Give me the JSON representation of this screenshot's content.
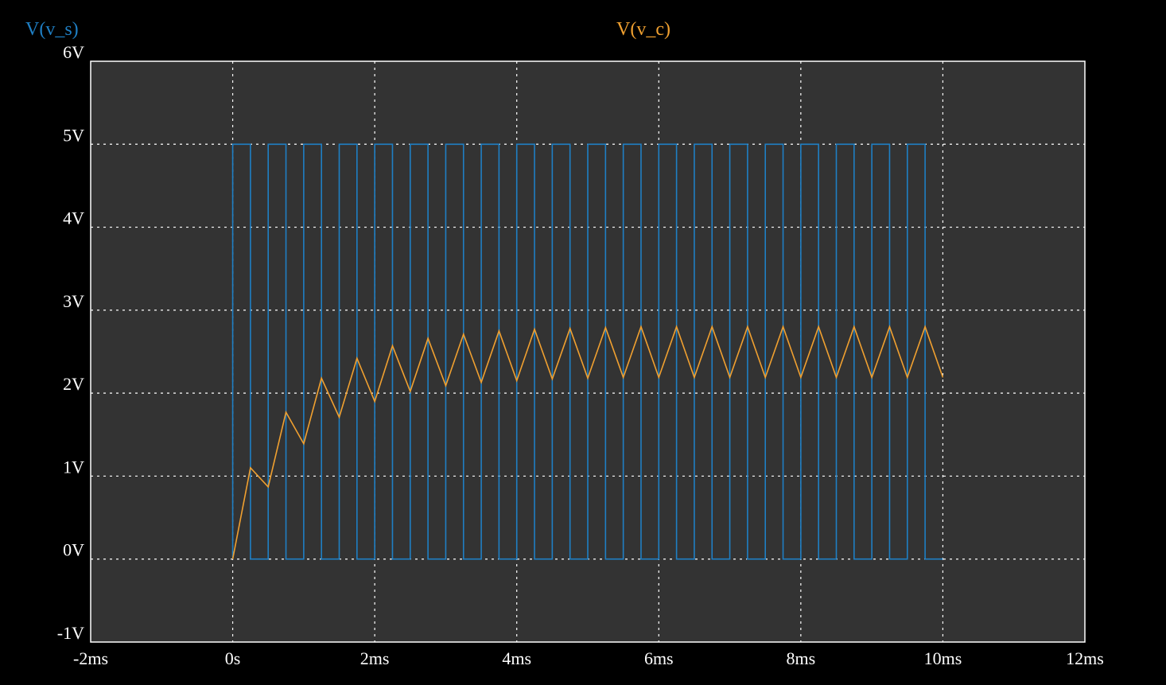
{
  "chart_data": {
    "type": "line",
    "background": "#000000",
    "plot_background": "#333333",
    "grid": true,
    "grid_color": "#ffffff",
    "frame_color": "#ffffff",
    "tick_label_color": "#ffffff",
    "xlim": [
      -2,
      12
    ],
    "ylim": [
      -1,
      6
    ],
    "x_unit": "ms",
    "y_unit": "V",
    "x_ticks": [
      -2,
      0,
      2,
      4,
      6,
      8,
      10,
      12
    ],
    "x_tick_labels": [
      "-2ms",
      "0s",
      "2ms",
      "4ms",
      "6ms",
      "8ms",
      "10ms",
      "12ms"
    ],
    "y_ticks": [
      -1,
      0,
      1,
      2,
      3,
      4,
      5,
      6
    ],
    "y_tick_labels": [
      "-1V",
      "0V",
      "1V",
      "2V",
      "3V",
      "4V",
      "5V",
      "6V"
    ],
    "series": [
      {
        "name": "V(v_s)",
        "color": "#1f7fc4",
        "kind": "square",
        "t_start": 0,
        "t_end": 10,
        "period": 0.5,
        "high_duration": 0.25,
        "high": 5,
        "low": 0
      },
      {
        "name": "V(v_c)",
        "color": "#f0a030",
        "kind": "line",
        "x": [
          0,
          0.25,
          0.5,
          0.75,
          1.0,
          1.25,
          1.5,
          1.75,
          2.0,
          2.25,
          2.5,
          2.75,
          3.0,
          3.25,
          3.5,
          3.75,
          4.0,
          4.25,
          4.5,
          4.75,
          5.0,
          5.25,
          5.5,
          5.75,
          6.0,
          6.25,
          6.5,
          6.75,
          7.0,
          7.25,
          7.5,
          7.75,
          8.0,
          8.25,
          8.5,
          8.75,
          9.0,
          9.25,
          9.5,
          9.75,
          10.0
        ],
        "y": [
          0,
          1.1,
          0.87,
          1.77,
          1.39,
          2.18,
          1.71,
          2.42,
          1.9,
          2.57,
          2.02,
          2.66,
          2.09,
          2.71,
          2.13,
          2.75,
          2.15,
          2.77,
          2.17,
          2.78,
          2.18,
          2.79,
          2.19,
          2.8,
          2.19,
          2.8,
          2.19,
          2.8,
          2.19,
          2.8,
          2.19,
          2.8,
          2.19,
          2.8,
          2.19,
          2.8,
          2.19,
          2.8,
          2.19,
          2.8,
          2.19
        ]
      }
    ]
  }
}
